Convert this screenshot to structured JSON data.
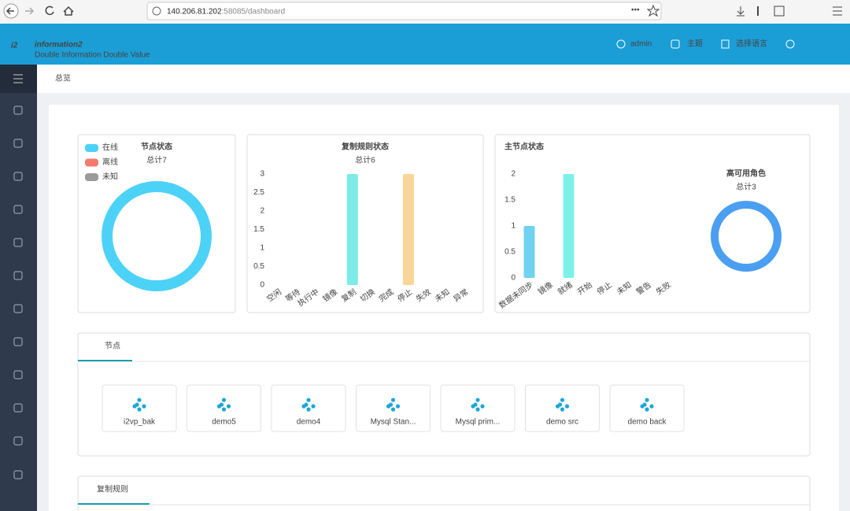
{
  "browser": {
    "url_host": "140.206.81.202",
    "url_path": ":58085/dashboard"
  },
  "header": {
    "logo_mark": "i2",
    "logo": "information2",
    "tagline": "Double Information Double Value",
    "user": "admin",
    "theme": "主题",
    "language": "选择语言"
  },
  "breadcrumb": "总览",
  "chart_data": [
    {
      "type": "pie",
      "title": "节点状态",
      "subtitle": "总计7",
      "categories": [
        "在线",
        "离线",
        "未知"
      ],
      "values": [
        7,
        0,
        0
      ],
      "colors": [
        "#4dd2f7",
        "#f27b6e",
        "#9a9a9a"
      ],
      "legend": "top-left"
    },
    {
      "type": "bar",
      "title": "复制规则状态",
      "subtitle": "总计6",
      "categories": [
        "空闲",
        "等待",
        "执行中",
        "镜像",
        "复制",
        "切换",
        "完成",
        "停止",
        "失效",
        "未知",
        "异常"
      ],
      "values": [
        0,
        0,
        0,
        0,
        3,
        0,
        0,
        3,
        0,
        0,
        0
      ],
      "colors": [
        "#6fe9e6",
        "#6fe9e6",
        "#6fe9e6",
        "#6fe9e6",
        "#6fe9e6",
        "#6fe9e6",
        "#6fe9e6",
        "#f7d28c",
        "#6fe9e6",
        "#6fe9e6",
        "#6fe9e6"
      ],
      "ylim": [
        0,
        3
      ],
      "yticks": [
        0,
        0.5,
        1,
        1.5,
        2,
        2.5,
        3
      ]
    },
    {
      "type": "bar",
      "title": "主节点状态",
      "categories": [
        "数据未同步",
        "镜像",
        "就绪",
        "开始",
        "停止",
        "未知",
        "警告",
        "失败"
      ],
      "values": [
        1,
        0,
        2,
        0,
        0,
        0,
        0,
        0
      ],
      "colors": [
        "#5fcdf0",
        "#6fe9e6",
        "#6ff0e6",
        "#6fe9e6",
        "#6fe9e6",
        "#6fe9e6",
        "#6fe9e6",
        "#6fe9e6"
      ],
      "ylim": [
        0,
        2
      ],
      "yticks": [
        0,
        0.5,
        1,
        1.5,
        2
      ]
    },
    {
      "type": "pie",
      "title": "高可用角色",
      "subtitle": "总计3",
      "categories": [
        null
      ],
      "values": [
        3
      ],
      "colors": [
        "#4a9ff0"
      ]
    }
  ],
  "tabs": [
    {
      "label": "节点",
      "items": [
        "i2vp_bak",
        "demo5",
        "demo4",
        "Mysql Stan...",
        "Mysql prim...",
        "demo src",
        "demo back"
      ]
    },
    {
      "label": "复制规则"
    }
  ]
}
